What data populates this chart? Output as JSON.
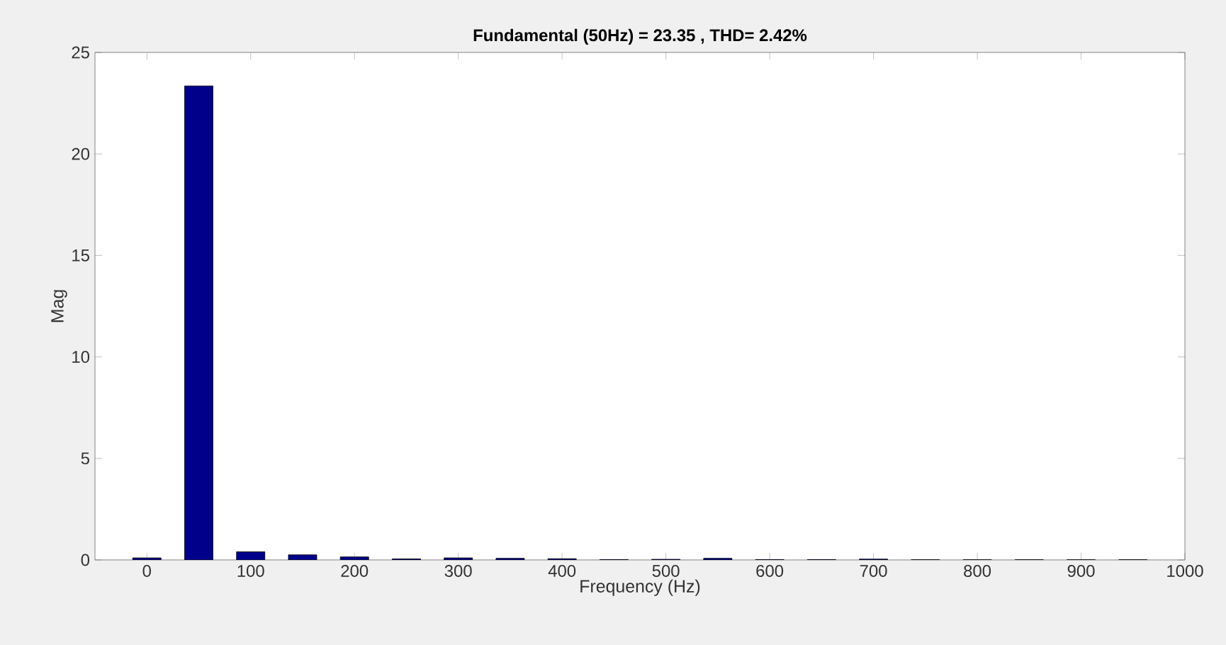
{
  "chart_data": {
    "type": "bar",
    "title": "Fundamental (50Hz) = 23.35 , THD= 2.42%",
    "xlabel": "Frequency (Hz)",
    "ylabel": "Mag",
    "x": [
      0,
      50,
      100,
      150,
      200,
      250,
      300,
      350,
      400,
      450,
      500,
      550,
      600,
      650,
      700,
      750,
      800,
      850,
      900,
      950
    ],
    "values": [
      0.1,
      23.35,
      0.4,
      0.25,
      0.15,
      0.05,
      0.1,
      0.08,
      0.06,
      0.02,
      0.03,
      0.08,
      0.02,
      0.02,
      0.04,
      0.01,
      0.01,
      0.01,
      0.01,
      0.01
    ],
    "color": "#00008b",
    "xlim": [
      -50,
      1000
    ],
    "xticks": [
      0,
      100,
      200,
      300,
      400,
      500,
      600,
      700,
      800,
      900,
      1000
    ],
    "ylim": [
      0,
      25
    ],
    "yticks": [
      0,
      5,
      10,
      15,
      20,
      25
    ],
    "grid": false,
    "legend": false
  }
}
